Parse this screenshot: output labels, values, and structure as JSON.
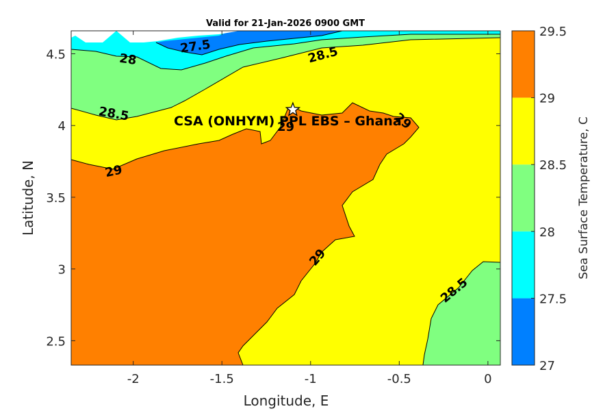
{
  "chart_data": {
    "type": "contour",
    "title": "Valid for 21-Jan-2026 0900 GMT",
    "xlabel": "Longitude, E",
    "ylabel": "Latitude, N",
    "xlim": [
      -2.35,
      0.07
    ],
    "ylim": [
      2.33,
      4.66
    ],
    "x_ticks": [
      -2,
      -1.5,
      -1,
      -0.5,
      0
    ],
    "x_tick_labels": [
      "-2",
      "-1.5",
      "-1",
      "-0.5",
      "0"
    ],
    "y_ticks": [
      2.5,
      3,
      3.5,
      4,
      4.5
    ],
    "y_tick_labels": [
      "2.5",
      "3",
      "3.5",
      "4",
      "4.5"
    ],
    "colorbar": {
      "label": "Sea Surface Temperature, C",
      "ticks": [
        27,
        27.5,
        28,
        28.5,
        29,
        29.5
      ],
      "tick_labels": [
        "27",
        "27.5",
        "28",
        "28.5",
        "29",
        "29.5"
      ],
      "bands": [
        {
          "min": 27.0,
          "max": 27.5,
          "color": "#0080ff"
        },
        {
          "min": 27.5,
          "max": 28.0,
          "color": "#00ffff"
        },
        {
          "min": 28.0,
          "max": 28.5,
          "color": "#80ff80"
        },
        {
          "min": 28.5,
          "max": 29.0,
          "color": "#ffff00"
        },
        {
          "min": 29.0,
          "max": 29.5,
          "color": "#ff8000"
        }
      ]
    },
    "contour_labels": [
      {
        "text": "27.5",
        "lon": -1.65,
        "lat": 4.55,
        "angle": -8
      },
      {
        "text": "28",
        "lon": -2.03,
        "lat": 4.46,
        "angle": 8
      },
      {
        "text": "28.5",
        "lon": -0.93,
        "lat": 4.49,
        "angle": -15
      },
      {
        "text": "28.5",
        "lon": -2.11,
        "lat": 4.08,
        "angle": 10
      },
      {
        "text": "29",
        "lon": -2.11,
        "lat": 3.68,
        "angle": -12
      },
      {
        "text": "29",
        "lon": -1.14,
        "lat": 3.99,
        "angle": 0
      },
      {
        "text": "29",
        "lon": -0.48,
        "lat": 4.03,
        "angle": 40
      },
      {
        "text": "29",
        "lon": -0.96,
        "lat": 3.08,
        "angle": -50
      },
      {
        "text": "28.5",
        "lon": -0.19,
        "lat": 2.85,
        "angle": -40
      }
    ],
    "site": {
      "label": "CSA (ONHYM) PPL EBS  – Ghana",
      "lon": -1.1,
      "lat": 4.11,
      "marker": "star"
    }
  }
}
